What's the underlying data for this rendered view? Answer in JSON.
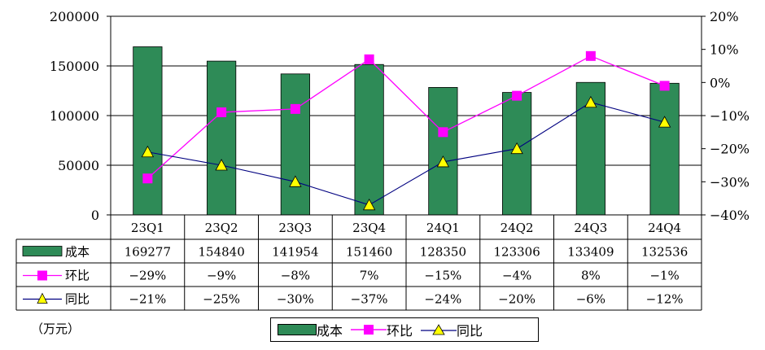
{
  "chart_data": {
    "type": "bar",
    "categories": [
      "23Q1",
      "23Q2",
      "23Q3",
      "23Q4",
      "24Q1",
      "24Q2",
      "24Q3",
      "24Q4"
    ],
    "series": [
      {
        "name": "成本",
        "type": "bar",
        "axis": "left",
        "color": "#2e8b57",
        "values": [
          169277,
          154840,
          141954,
          151460,
          128350,
          123306,
          133409,
          132536
        ],
        "labels": [
          "169277",
          "154840",
          "141954",
          "151460",
          "128350",
          "123306",
          "133409",
          "132536"
        ]
      },
      {
        "name": "环比",
        "type": "line",
        "axis": "right",
        "color": "#ff00ff",
        "marker": "square",
        "values": [
          -29,
          -9,
          -8,
          7,
          -15,
          -4,
          8,
          -1
        ],
        "labels": [
          "−29%",
          "−9%",
          "−8%",
          "7%",
          "−15%",
          "−4%",
          "8%",
          "−1%"
        ]
      },
      {
        "name": "同比",
        "type": "line",
        "axis": "right",
        "color": "#000080",
        "marker": "triangle",
        "marker_color": "#ffff00",
        "values": [
          -21,
          -25,
          -30,
          -37,
          -24,
          -20,
          -6,
          -12
        ],
        "labels": [
          "−21%",
          "−25%",
          "−30%",
          "−37%",
          "−24%",
          "−20%",
          "−6%",
          "−12%"
        ]
      }
    ],
    "y_left": {
      "lim": [
        0,
        200000
      ],
      "ticks": [
        0,
        50000,
        100000,
        150000,
        200000
      ],
      "tick_labels": [
        "0",
        "50000",
        "100000",
        "150000",
        "200000"
      ]
    },
    "y_right": {
      "lim": [
        -40,
        20
      ],
      "ticks": [
        -40,
        -30,
        -20,
        -10,
        0,
        10,
        20
      ],
      "tick_labels": [
        "−40%",
        "−30%",
        "−20%",
        "−10%",
        "0%",
        "10%",
        "20%"
      ]
    },
    "grid": true,
    "unit_label": "（万元）",
    "legend": [
      "成本",
      "环比",
      "同比"
    ],
    "legend_position": "bottom"
  }
}
